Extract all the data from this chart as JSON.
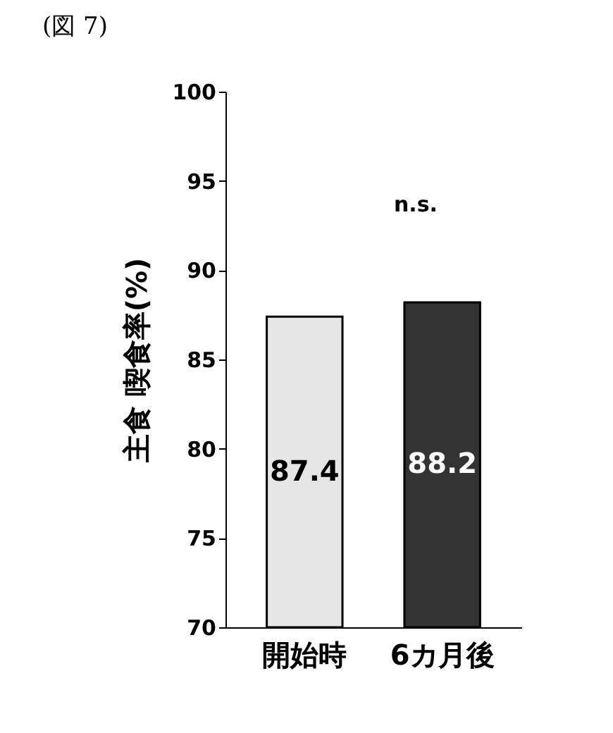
{
  "chart_data": {
    "type": "bar",
    "title": "(図 7)",
    "ylabel": "主食 喫食率(%)",
    "categories": [
      "開始時",
      "6カ月後"
    ],
    "values": [
      87.4,
      88.2
    ],
    "colors": [
      "#e6e6e6",
      "#333333"
    ],
    "ylim": [
      70,
      100
    ],
    "yticks": [
      70,
      75,
      80,
      85,
      90,
      95,
      100
    ],
    "data_labels": true,
    "grid": false,
    "annotations": [
      "n.s."
    ]
  }
}
